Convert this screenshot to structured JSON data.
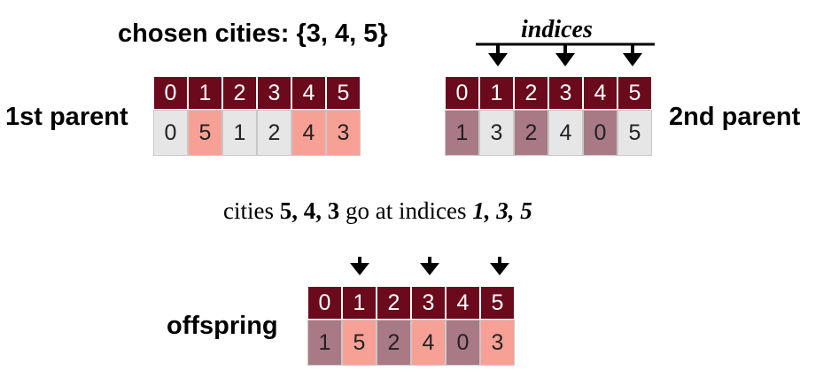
{
  "title": "chosen cities: {3, 4, 5}",
  "indices_label": "indices",
  "parent1": {
    "label": "1st parent",
    "headers": [
      "0",
      "1",
      "2",
      "3",
      "4",
      "5"
    ],
    "values": [
      "0",
      "5",
      "1",
      "2",
      "4",
      "3"
    ],
    "colors": [
      "#e6e6e6",
      "#f7a196",
      "#e6e6e6",
      "#e6e6e6",
      "#f7a196",
      "#f7a196"
    ]
  },
  "parent2": {
    "label": "2nd parent",
    "headers": [
      "0",
      "1",
      "2",
      "3",
      "4",
      "5"
    ],
    "values": [
      "1",
      "3",
      "2",
      "4",
      "0",
      "5"
    ],
    "colors": [
      "#a97a85",
      "#e6e6e6",
      "#a97a85",
      "#e6e6e6",
      "#a97a85",
      "#e6e6e6"
    ]
  },
  "sentence": {
    "prefix": "cities ",
    "cities": "5, 4, 3",
    "middle": " go at indices ",
    "indices": "1, 3, 5"
  },
  "offspring": {
    "label": "offspring",
    "headers": [
      "0",
      "1",
      "2",
      "3",
      "4",
      "5"
    ],
    "values": [
      "1",
      "5",
      "2",
      "4",
      "0",
      "3"
    ],
    "colors": [
      "#a97a85",
      "#f7a196",
      "#a97a85",
      "#f7a196",
      "#a97a85",
      "#f7a196"
    ]
  }
}
